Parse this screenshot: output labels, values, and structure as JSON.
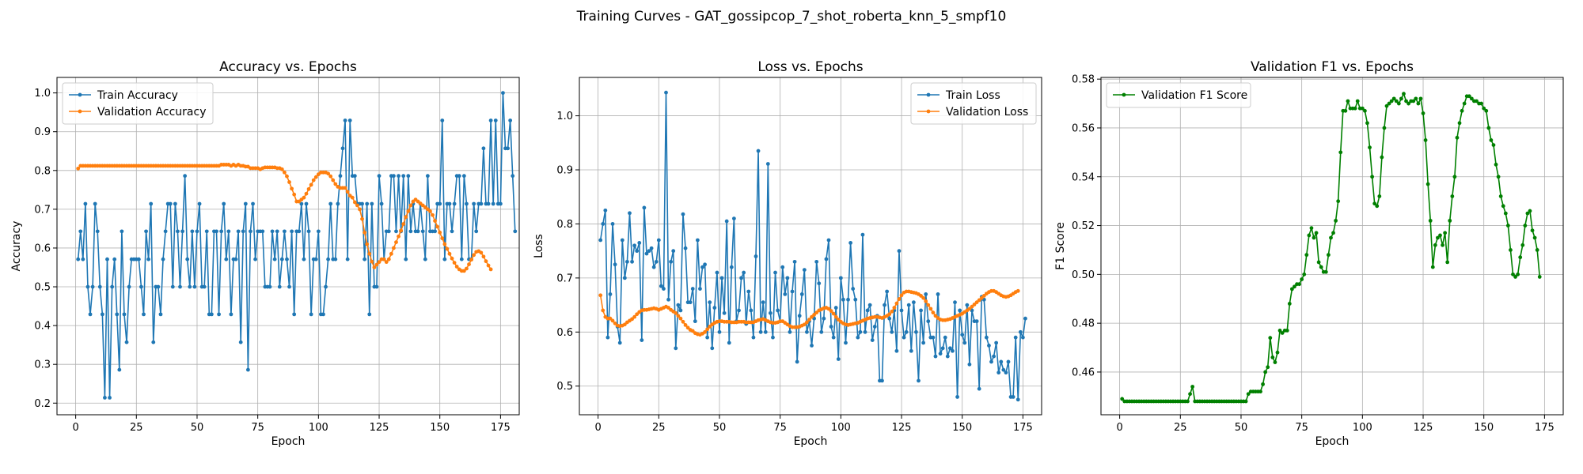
{
  "suptitle": "Training Curves - GAT_gossipcop_7_shot_roberta_knn_5_smpf10",
  "chart_data": [
    {
      "type": "line",
      "title": "Accuracy vs. Epochs",
      "xlabel": "Epoch",
      "ylabel": "Accuracy",
      "xlim": [
        -7.7,
        182.7
      ],
      "ylim": [
        0.17,
        1.04
      ],
      "xticks": [
        0,
        25,
        50,
        75,
        100,
        125,
        150,
        175
      ],
      "yticks": [
        0.2,
        0.3,
        0.4,
        0.5,
        0.6,
        0.7,
        0.8,
        0.9,
        1.0
      ],
      "grid": true,
      "legend_position": "upper-left",
      "series": [
        {
          "name": "Train Accuracy",
          "color": "#1f77b4",
          "y": [
            0.571,
            0.643,
            0.571,
            0.714,
            0.5,
            0.429,
            0.5,
            0.714,
            0.643,
            0.5,
            0.429,
            0.214,
            0.571,
            0.214,
            0.5,
            0.571,
            0.429,
            0.286,
            0.643,
            0.429,
            0.357,
            0.5,
            0.571,
            0.571,
            0.571,
            0.571,
            0.5,
            0.429,
            0.643,
            0.571,
            0.714,
            0.357,
            0.5,
            0.5,
            0.429,
            0.571,
            0.643,
            0.714,
            0.714,
            0.5,
            0.714,
            0.643,
            0.5,
            0.643,
            0.786,
            0.571,
            0.5,
            0.643,
            0.5,
            0.643,
            0.714,
            0.5,
            0.5,
            0.643,
            0.429,
            0.429,
            0.643,
            0.643,
            0.429,
            0.643,
            0.714,
            0.571,
            0.643,
            0.429,
            0.571,
            0.571,
            0.643,
            0.357,
            0.643,
            0.714,
            0.286,
            0.643,
            0.714,
            0.571,
            0.643,
            0.643,
            0.643,
            0.5,
            0.5,
            0.5,
            0.643,
            0.571,
            0.643,
            0.5,
            0.571,
            0.643,
            0.571,
            0.5,
            0.643,
            0.429,
            0.643,
            0.643,
            0.714,
            0.571,
            0.714,
            0.643,
            0.429,
            0.571,
            0.571,
            0.643,
            0.429,
            0.429,
            0.5,
            0.571,
            0.714,
            0.571,
            0.571,
            0.714,
            0.786,
            0.857,
            0.929,
            0.571,
            0.929,
            0.786,
            0.786,
            0.714,
            0.714,
            0.714,
            0.571,
            0.714,
            0.429,
            0.714,
            0.5,
            0.5,
            0.786,
            0.714,
            0.571,
            0.643,
            0.643,
            0.786,
            0.786,
            0.643,
            0.786,
            0.643,
            0.786,
            0.571,
            0.786,
            0.643,
            0.714,
            0.643,
            0.643,
            0.714,
            0.643,
            0.571,
            0.786,
            0.643,
            0.643,
            0.643,
            0.714,
            0.714,
            0.929,
            0.571,
            0.714,
            0.714,
            0.643,
            0.714,
            0.786,
            0.786,
            0.571,
            0.786,
            0.714,
            0.571,
            0.571,
            0.714,
            0.643,
            0.714,
            0.714,
            0.857,
            0.714,
            0.714,
            0.929,
            0.714,
            0.929,
            0.714,
            0.714,
            1.0,
            0.857,
            0.857,
            0.929,
            0.786,
            0.643
          ]
        },
        {
          "name": "Validation Accuracy",
          "color": "#ff7f0e",
          "y": [
            0.805,
            0.812,
            0.812,
            0.812,
            0.812,
            0.812,
            0.812,
            0.812,
            0.812,
            0.812,
            0.812,
            0.812,
            0.812,
            0.812,
            0.812,
            0.812,
            0.812,
            0.812,
            0.812,
            0.812,
            0.812,
            0.812,
            0.812,
            0.812,
            0.812,
            0.812,
            0.812,
            0.812,
            0.812,
            0.812,
            0.812,
            0.812,
            0.812,
            0.812,
            0.812,
            0.812,
            0.812,
            0.812,
            0.812,
            0.812,
            0.812,
            0.812,
            0.812,
            0.812,
            0.812,
            0.812,
            0.812,
            0.812,
            0.812,
            0.812,
            0.812,
            0.812,
            0.812,
            0.812,
            0.812,
            0.812,
            0.812,
            0.812,
            0.812,
            0.815,
            0.815,
            0.815,
            0.815,
            0.812,
            0.815,
            0.812,
            0.815,
            0.812,
            0.812,
            0.81,
            0.81,
            0.806,
            0.806,
            0.806,
            0.806,
            0.803,
            0.806,
            0.808,
            0.808,
            0.808,
            0.808,
            0.808,
            0.806,
            0.806,
            0.803,
            0.795,
            0.785,
            0.77,
            0.753,
            0.738,
            0.72,
            0.72,
            0.725,
            0.73,
            0.74,
            0.752,
            0.763,
            0.775,
            0.783,
            0.79,
            0.795,
            0.795,
            0.795,
            0.792,
            0.785,
            0.775,
            0.765,
            0.758,
            0.755,
            0.755,
            0.755,
            0.745,
            0.735,
            0.73,
            0.718,
            0.71,
            0.7,
            0.675,
            0.64,
            0.61,
            0.585,
            0.565,
            0.55,
            0.557,
            0.564,
            0.571,
            0.571,
            0.564,
            0.571,
            0.585,
            0.6,
            0.615,
            0.63,
            0.645,
            0.662,
            0.68,
            0.695,
            0.71,
            0.72,
            0.725,
            0.72,
            0.715,
            0.71,
            0.705,
            0.7,
            0.695,
            0.685,
            0.67,
            0.655,
            0.64,
            0.625,
            0.61,
            0.598,
            0.585,
            0.573,
            0.562,
            0.552,
            0.545,
            0.541,
            0.541,
            0.547,
            0.558,
            0.57,
            0.582,
            0.59,
            0.592,
            0.588,
            0.578,
            0.566,
            0.555,
            0.545
          ]
        }
      ]
    },
    {
      "type": "line",
      "title": "Loss vs. Epochs",
      "xlabel": "Epoch",
      "ylabel": "Loss",
      "xlim": [
        -7.7,
        182.7
      ],
      "ylim": [
        0.447,
        1.071
      ],
      "xticks": [
        0,
        25,
        50,
        75,
        100,
        125,
        150,
        175
      ],
      "yticks": [
        0.5,
        0.6,
        0.7,
        0.8,
        0.9,
        1.0
      ],
      "grid": true,
      "legend_position": "upper-right",
      "series": [
        {
          "name": "Train Loss",
          "color": "#1f77b4",
          "y": [
            0.77,
            0.8,
            0.825,
            0.59,
            0.67,
            0.8,
            0.725,
            0.61,
            0.58,
            0.77,
            0.7,
            0.73,
            0.82,
            0.73,
            0.76,
            0.75,
            0.765,
            0.585,
            0.83,
            0.745,
            0.75,
            0.755,
            0.72,
            0.73,
            0.77,
            0.685,
            0.68,
            1.043,
            0.66,
            0.73,
            0.75,
            0.57,
            0.65,
            0.64,
            0.818,
            0.755,
            0.655,
            0.655,
            0.68,
            0.62,
            0.77,
            0.68,
            0.72,
            0.725,
            0.59,
            0.655,
            0.57,
            0.645,
            0.71,
            0.6,
            0.7,
            0.635,
            0.805,
            0.58,
            0.72,
            0.81,
            0.62,
            0.64,
            0.7,
            0.71,
            0.615,
            0.675,
            0.64,
            0.59,
            0.74,
            0.935,
            0.6,
            0.655,
            0.6,
            0.911,
            0.635,
            0.59,
            0.71,
            0.64,
            0.62,
            0.72,
            0.67,
            0.7,
            0.6,
            0.675,
            0.73,
            0.545,
            0.63,
            0.67,
            0.715,
            0.6,
            0.62,
            0.575,
            0.625,
            0.73,
            0.69,
            0.6,
            0.625,
            0.735,
            0.77,
            0.61,
            0.59,
            0.645,
            0.55,
            0.7,
            0.66,
            0.58,
            0.66,
            0.765,
            0.68,
            0.66,
            0.59,
            0.6,
            0.78,
            0.6,
            0.64,
            0.65,
            0.585,
            0.61,
            0.63,
            0.51,
            0.51,
            0.65,
            0.675,
            0.625,
            0.6,
            0.64,
            0.565,
            0.75,
            0.64,
            0.59,
            0.6,
            0.65,
            0.565,
            0.655,
            0.6,
            0.51,
            0.64,
            0.58,
            0.67,
            0.62,
            0.59,
            0.59,
            0.555,
            0.67,
            0.56,
            0.57,
            0.59,
            0.555,
            0.57,
            0.565,
            0.655,
            0.48,
            0.64,
            0.595,
            0.58,
            0.65,
            0.54,
            0.64,
            0.62,
            0.62,
            0.495,
            0.665,
            0.66,
            0.59,
            0.575,
            0.545,
            0.555,
            0.58,
            0.525,
            0.545,
            0.53,
            0.525,
            0.545,
            0.48,
            0.48,
            0.59,
            0.475,
            0.6,
            0.59,
            0.625
          ]
        },
        {
          "name": "Validation Loss",
          "color": "#ff7f0e",
          "y": [
            0.668,
            0.64,
            0.628,
            0.625,
            0.625,
            0.621,
            0.616,
            0.612,
            0.611,
            0.612,
            0.614,
            0.618,
            0.621,
            0.624,
            0.628,
            0.633,
            0.637,
            0.64,
            0.641,
            0.641,
            0.642,
            0.643,
            0.644,
            0.643,
            0.641,
            0.643,
            0.645,
            0.647,
            0.645,
            0.641,
            0.638,
            0.635,
            0.63,
            0.625,
            0.619,
            0.613,
            0.608,
            0.604,
            0.602,
            0.598,
            0.596,
            0.595,
            0.597,
            0.6,
            0.605,
            0.61,
            0.614,
            0.617,
            0.619,
            0.62,
            0.62,
            0.619,
            0.619,
            0.619,
            0.618,
            0.618,
            0.618,
            0.619,
            0.619,
            0.619,
            0.618,
            0.618,
            0.618,
            0.618,
            0.62,
            0.622,
            0.623,
            0.624,
            0.622,
            0.62,
            0.618,
            0.617,
            0.617,
            0.618,
            0.62,
            0.62,
            0.617,
            0.614,
            0.611,
            0.609,
            0.609,
            0.609,
            0.61,
            0.612,
            0.614,
            0.618,
            0.623,
            0.628,
            0.632,
            0.636,
            0.64,
            0.642,
            0.644,
            0.645,
            0.643,
            0.639,
            0.634,
            0.628,
            0.623,
            0.619,
            0.616,
            0.614,
            0.613,
            0.614,
            0.615,
            0.616,
            0.617,
            0.619,
            0.621,
            0.623,
            0.625,
            0.626,
            0.627,
            0.628,
            0.628,
            0.627,
            0.626,
            0.628,
            0.63,
            0.633,
            0.638,
            0.645,
            0.653,
            0.661,
            0.668,
            0.673,
            0.675,
            0.675,
            0.674,
            0.673,
            0.672,
            0.67,
            0.667,
            0.663,
            0.657,
            0.65,
            0.643,
            0.636,
            0.63,
            0.626,
            0.623,
            0.622,
            0.622,
            0.623,
            0.624,
            0.626,
            0.628,
            0.63,
            0.632,
            0.634,
            0.637,
            0.64,
            0.643,
            0.647,
            0.651,
            0.655,
            0.659,
            0.663,
            0.667,
            0.671,
            0.674,
            0.676,
            0.676,
            0.674,
            0.671,
            0.668,
            0.666,
            0.665,
            0.666,
            0.668,
            0.671,
            0.674,
            0.676
          ]
        }
      ]
    },
    {
      "type": "line",
      "title": "Validation F1 vs. Epochs",
      "xlabel": "Epoch",
      "ylabel": "F1 Score",
      "xlim": [
        -7.7,
        182.7
      ],
      "ylim": [
        0.4425,
        0.5807
      ],
      "xticks": [
        0,
        25,
        50,
        75,
        100,
        125,
        150,
        175
      ],
      "yticks": [
        0.46,
        0.48,
        0.5,
        0.52,
        0.54,
        0.56,
        0.58
      ],
      "grid": true,
      "legend_position": "upper-left",
      "series": [
        {
          "name": "Validation F1 Score",
          "color": "#008000",
          "y": [
            0.449,
            0.448,
            0.448,
            0.448,
            0.448,
            0.448,
            0.448,
            0.448,
            0.448,
            0.448,
            0.448,
            0.448,
            0.448,
            0.448,
            0.448,
            0.448,
            0.448,
            0.448,
            0.448,
            0.448,
            0.448,
            0.448,
            0.448,
            0.448,
            0.448,
            0.448,
            0.448,
            0.448,
            0.451,
            0.454,
            0.448,
            0.448,
            0.448,
            0.448,
            0.448,
            0.448,
            0.448,
            0.448,
            0.448,
            0.448,
            0.448,
            0.448,
            0.448,
            0.448,
            0.448,
            0.448,
            0.448,
            0.448,
            0.448,
            0.448,
            0.448,
            0.448,
            0.451,
            0.452,
            0.452,
            0.452,
            0.452,
            0.452,
            0.455,
            0.46,
            0.462,
            0.474,
            0.466,
            0.464,
            0.468,
            0.477,
            0.476,
            0.477,
            0.477,
            0.488,
            0.494,
            0.495,
            0.496,
            0.496,
            0.498,
            0.5,
            0.508,
            0.516,
            0.519,
            0.515,
            0.517,
            0.505,
            0.503,
            0.501,
            0.501,
            0.508,
            0.515,
            0.517,
            0.522,
            0.53,
            0.55,
            0.567,
            0.567,
            0.571,
            0.568,
            0.568,
            0.568,
            0.571,
            0.568,
            0.568,
            0.567,
            0.562,
            0.552,
            0.54,
            0.529,
            0.528,
            0.532,
            0.548,
            0.56,
            0.569,
            0.57,
            0.571,
            0.572,
            0.571,
            0.57,
            0.572,
            0.574,
            0.571,
            0.57,
            0.571,
            0.571,
            0.572,
            0.57,
            0.572,
            0.566,
            0.555,
            0.537,
            0.522,
            0.503,
            0.512,
            0.515,
            0.516,
            0.512,
            0.517,
            0.505,
            0.522,
            0.532,
            0.54,
            0.556,
            0.562,
            0.567,
            0.57,
            0.573,
            0.573,
            0.572,
            0.571,
            0.571,
            0.57,
            0.57,
            0.568,
            0.567,
            0.56,
            0.555,
            0.553,
            0.545,
            0.54,
            0.532,
            0.528,
            0.525,
            0.52,
            0.51,
            0.5,
            0.499,
            0.5,
            0.507,
            0.512,
            0.52,
            0.525,
            0.526,
            0.518,
            0.515,
            0.51,
            0.499
          ]
        }
      ]
    }
  ]
}
